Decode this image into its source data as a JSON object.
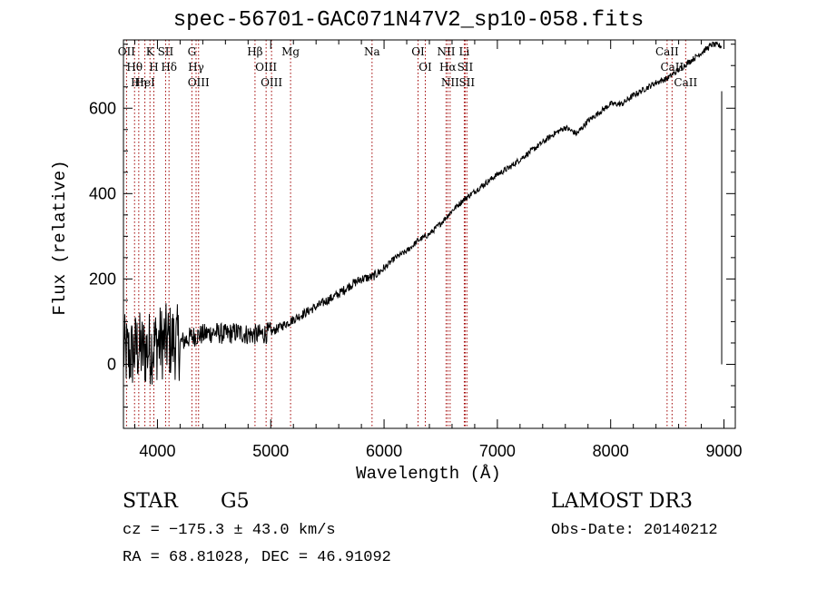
{
  "chart_data": {
    "type": "line",
    "title": "spec-56701-GAC071N47V2_sp10-058.fits",
    "xlabel": "Wavelength (Å)",
    "ylabel": "Flux (relative)",
    "xlim": [
      3700,
      9100
    ],
    "ylim": [
      -150,
      760
    ],
    "x_ticks": [
      4000,
      5000,
      6000,
      7000,
      8000,
      9000
    ],
    "x_tick_labels": [
      "4000",
      "5000",
      "6000",
      "7000",
      "8000",
      "9000"
    ],
    "y_ticks": [
      0,
      200,
      400,
      600
    ],
    "y_tick_labels": [
      "0",
      "200",
      "400",
      "600"
    ],
    "grid": false,
    "series": [
      {
        "name": "spectrum",
        "x": [
          3700,
          3760,
          3820,
          3880,
          3940,
          4000,
          4100,
          4200,
          4300,
          4400,
          4500,
          4600,
          4700,
          4800,
          4900,
          5000,
          5100,
          5200,
          5300,
          5400,
          5500,
          5600,
          5700,
          5800,
          5900,
          6000,
          6100,
          6200,
          6300,
          6400,
          6500,
          6600,
          6700,
          6800,
          6900,
          7000,
          7100,
          7200,
          7300,
          7400,
          7500,
          7600,
          7700,
          7800,
          7900,
          8000,
          8100,
          8200,
          8300,
          8400,
          8500,
          8600,
          8700,
          8800,
          8900,
          8980
        ],
        "y": [
          30,
          20,
          40,
          30,
          40,
          50,
          55,
          50,
          65,
          70,
          75,
          70,
          75,
          70,
          70,
          75,
          90,
          105,
          120,
          135,
          150,
          165,
          185,
          200,
          205,
          225,
          250,
          265,
          290,
          305,
          330,
          360,
          385,
          405,
          425,
          445,
          460,
          480,
          500,
          520,
          540,
          555,
          540,
          570,
          590,
          610,
          610,
          630,
          645,
          660,
          670,
          690,
          710,
          730,
          750,
          745
        ]
      }
    ],
    "lines": [
      {
        "label": "OII",
        "x": 3727
      },
      {
        "label": "Hθ",
        "x": 3798
      },
      {
        "label": "Hη",
        "x": 3835
      },
      {
        "label": "HeI",
        "x": 3889
      },
      {
        "label": "K",
        "x": 3934
      },
      {
        "label": "H",
        "x": 3968
      },
      {
        "label": "SII",
        "x": 4072
      },
      {
        "label": "Hδ",
        "x": 4102
      },
      {
        "label": "G",
        "x": 4304
      },
      {
        "label": "Hγ",
        "x": 4341
      },
      {
        "label": "OIII",
        "x": 4363
      },
      {
        "label": "Hβ",
        "x": 4861
      },
      {
        "label": "OIII",
        "x": 4959
      },
      {
        "label": "OIII",
        "x": 5007
      },
      {
        "label": "Mg",
        "x": 5175
      },
      {
        "label": "Na",
        "x": 5894
      },
      {
        "label": "OI",
        "x": 6300
      },
      {
        "label": "OI",
        "x": 6364
      },
      {
        "label": "NII",
        "x": 6548
      },
      {
        "label": "Hα",
        "x": 6563
      },
      {
        "label": "NII",
        "x": 6583
      },
      {
        "label": "Li",
        "x": 6708
      },
      {
        "label": "SII",
        "x": 6716
      },
      {
        "label": "SII",
        "x": 6731
      },
      {
        "label": "CaII",
        "x": 8498
      },
      {
        "label": "CaII",
        "x": 8542
      },
      {
        "label": "CaII",
        "x": 8662
      }
    ]
  },
  "info": {
    "class": "STAR",
    "subclass": "G5",
    "survey": "LAMOST DR3",
    "cz": "cz = −175.3 ± 43.0 km/s",
    "obs_date": "Obs-Date: 20140212",
    "coords": "RA =  68.81028, DEC =  46.91092"
  },
  "colors": {
    "spectrum": "#000000",
    "lines": "#a00000",
    "axes": "#000000"
  }
}
